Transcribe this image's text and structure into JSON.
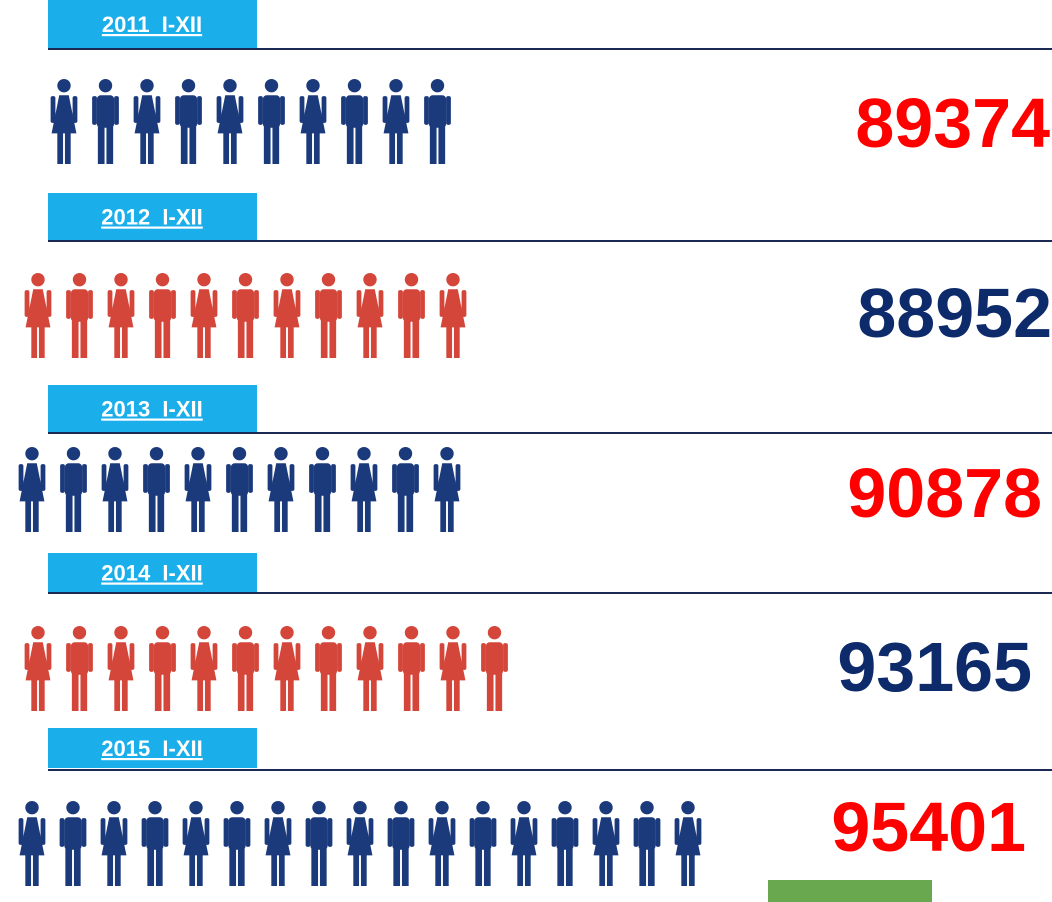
{
  "rows": [
    {
      "label": "2011  I-XII",
      "value": 89374
    },
    {
      "label": "2012  I-XII",
      "value": 88952
    },
    {
      "label": "2013  I-XII",
      "value": 90878
    },
    {
      "label": "2014  I-XII",
      "value": 93165
    },
    {
      "label": "2015  I-XII",
      "value": 95401
    }
  ]
}
